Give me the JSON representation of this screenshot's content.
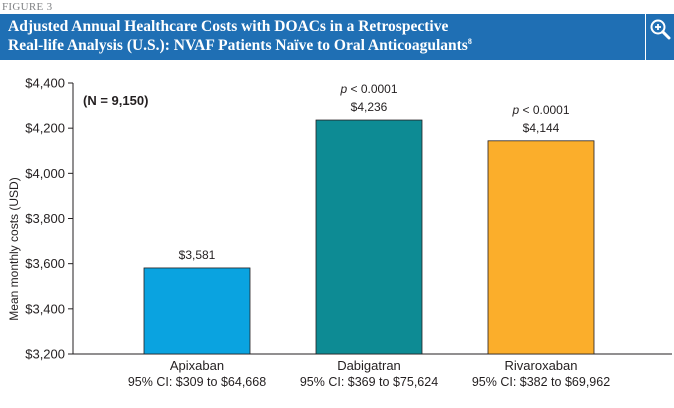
{
  "figure_label": "FIGURE 3",
  "title": {
    "line1": "Adjusted Annual Healthcare Costs with DOACs in a Retrospective",
    "line2": "Real-life Analysis (U.S.): NVAF Patients Naïve to Oral Anticoagulants",
    "superscript": "8"
  },
  "zoom_icon": "zoom-in-icon",
  "colors": {
    "title_bar": "#1f6fb4",
    "apixaban": "#0aa3e0",
    "dabigatran": "#0d8b94",
    "rivaroxaban": "#fbae2b"
  },
  "chart_data": {
    "type": "bar",
    "annotation": "(N = 9,150)",
    "ylabel": "Mean monthly costs (USD)",
    "xlabel": "",
    "ylim": [
      3200,
      4400
    ],
    "yticks": [
      3200,
      3400,
      3600,
      3800,
      4000,
      4200,
      4400
    ],
    "ytick_labels": [
      "$3,200",
      "$3,400",
      "$3,600",
      "$3,800",
      "$4,000",
      "$4,200",
      "$4,400"
    ],
    "grid": false,
    "categories": [
      "Apixaban",
      "Dabigatran",
      "Rivaroxaban"
    ],
    "ci_labels": [
      "95% CI: $309 to $64,668",
      "95% CI: $369 to $75,624",
      "95% CI: $382 to $69,962"
    ],
    "values": [
      3581,
      4236,
      4144
    ],
    "value_labels": [
      "$3,581",
      "$4,236",
      "$4,144"
    ],
    "p_values": [
      "",
      "p < 0.0001",
      "p < 0.0001"
    ],
    "bar_colors": [
      "#0aa3e0",
      "#0d8b94",
      "#fbae2b"
    ]
  }
}
